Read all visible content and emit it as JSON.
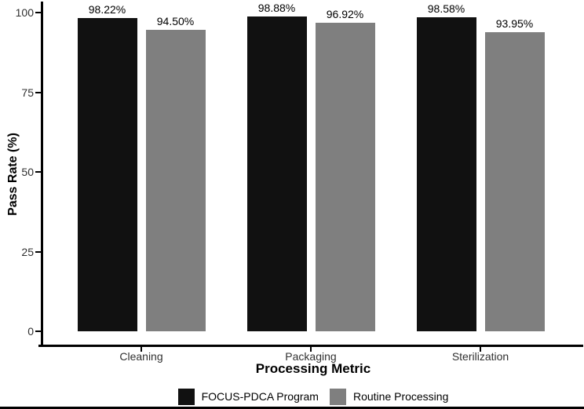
{
  "chart_data": {
    "type": "bar",
    "title": "",
    "xlabel": "Processing Metric",
    "ylabel": "Pass Rate (%)",
    "categories": [
      "Cleaning",
      "Packaging",
      "Sterilization"
    ],
    "series": [
      {
        "name": "FOCUS-PDCA Program",
        "color": "#111111",
        "values": [
          98.22,
          98.88,
          98.58
        ],
        "labels": [
          "98.22%",
          "98.88%",
          "98.58%"
        ]
      },
      {
        "name": "Routine Processing",
        "color": "#7f7f7f",
        "values": [
          94.5,
          96.92,
          93.95
        ],
        "labels": [
          "94.50%",
          "96.92%",
          "93.95%"
        ]
      }
    ],
    "yticks": [
      0,
      25,
      50,
      75,
      100
    ],
    "ylim": [
      0,
      100
    ],
    "grid": false,
    "legend_position": "bottom",
    "axis_color": "#000000",
    "background_color": "#ffffff"
  }
}
